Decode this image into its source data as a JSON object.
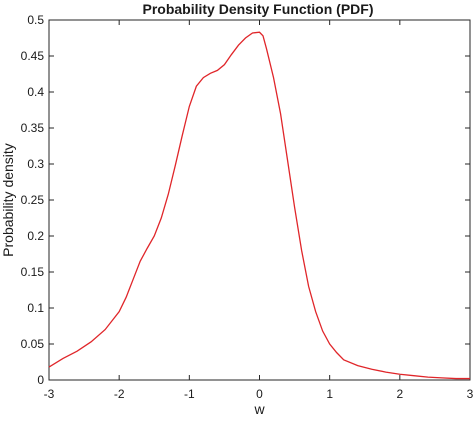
{
  "chart_data": {
    "type": "line",
    "title": "Probability Density Function (PDF)",
    "xlabel": "w",
    "ylabel": "Probability density",
    "xlim": [
      -3,
      3
    ],
    "ylim": [
      0,
      0.5
    ],
    "xticks": [
      -3,
      -2,
      -1,
      0,
      1,
      2,
      3
    ],
    "xtick_labels": [
      "-3",
      "-2",
      "-1",
      "0",
      "1",
      "2",
      "3"
    ],
    "yticks": [
      0,
      0.05,
      0.1,
      0.15,
      0.2,
      0.25,
      0.3,
      0.35,
      0.4,
      0.45,
      0.5
    ],
    "ytick_labels": [
      "0",
      "0.05",
      "0.1",
      "0.15",
      "0.2",
      "0.25",
      "0.3",
      "0.35",
      "0.4",
      "0.45",
      "0.5"
    ],
    "grid": false,
    "series": [
      {
        "color": "#e0262a",
        "x": [
          -3.0,
          -2.8,
          -2.6,
          -2.4,
          -2.2,
          -2.0,
          -1.9,
          -1.8,
          -1.7,
          -1.6,
          -1.5,
          -1.4,
          -1.3,
          -1.2,
          -1.1,
          -1.0,
          -0.9,
          -0.8,
          -0.7,
          -0.6,
          -0.5,
          -0.4,
          -0.3,
          -0.2,
          -0.1,
          0.0,
          0.05,
          0.1,
          0.2,
          0.3,
          0.4,
          0.5,
          0.6,
          0.7,
          0.8,
          0.9,
          1.0,
          1.1,
          1.2,
          1.4,
          1.6,
          1.8,
          2.0,
          2.2,
          2.4,
          2.6,
          2.8,
          3.0
        ],
        "y": [
          0.018,
          0.03,
          0.04,
          0.053,
          0.07,
          0.095,
          0.115,
          0.14,
          0.165,
          0.183,
          0.2,
          0.225,
          0.258,
          0.298,
          0.34,
          0.38,
          0.408,
          0.42,
          0.426,
          0.43,
          0.438,
          0.452,
          0.465,
          0.475,
          0.482,
          0.483,
          0.478,
          0.46,
          0.42,
          0.37,
          0.305,
          0.24,
          0.18,
          0.13,
          0.095,
          0.068,
          0.05,
          0.038,
          0.028,
          0.02,
          0.015,
          0.011,
          0.008,
          0.006,
          0.004,
          0.003,
          0.002,
          0.002
        ]
      }
    ]
  }
}
